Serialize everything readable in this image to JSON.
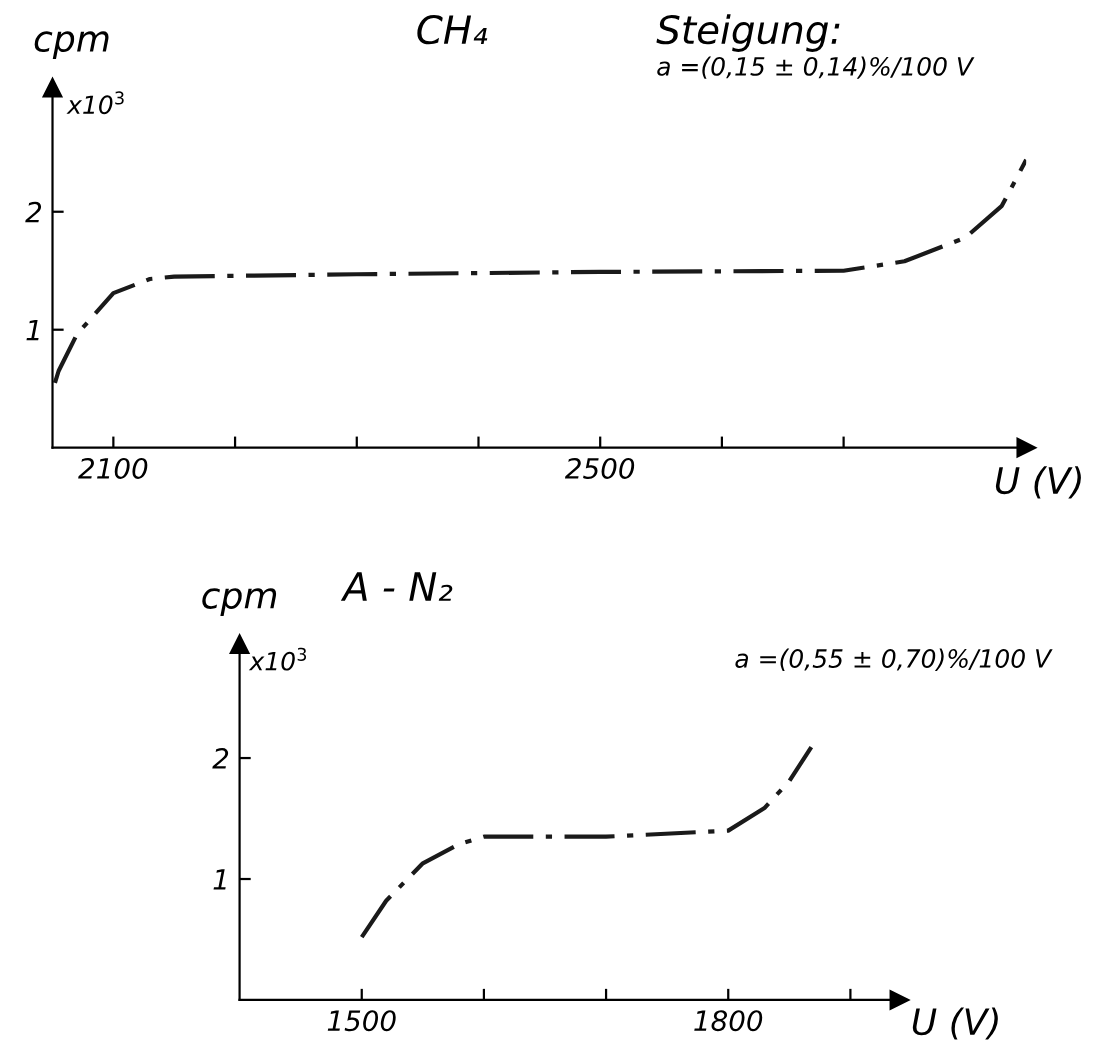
{
  "chart_data": [
    {
      "type": "line",
      "title": "CH₄",
      "subtitle": "Steigung:",
      "ylabel": "cpm",
      "xlabel": "U (V)",
      "annotations": [
        "x10$^{3}$",
        "a =(0,15 ± 0,14)%/100 V"
      ],
      "x": [
        2052,
        2055,
        2070,
        2100,
        2130,
        2150,
        2300,
        2500,
        2700,
        2750,
        2800,
        2830,
        2850
      ],
      "series": [
        {
          "color": "#1a1a1a",
          "values": [
            0.55,
            0.65,
            0.96,
            1.31,
            1.43,
            1.45,
            1.47,
            1.49,
            1.5,
            1.58,
            1.78,
            2.05,
            2.44
          ]
        }
      ],
      "xlim": [
        2050,
        2850
      ],
      "ylim": [
        0,
        3.05
      ],
      "xticks": [
        2100,
        {
          "value": 2200,
          "label": null
        },
        {
          "value": 2300,
          "label": null
        },
        {
          "value": 2400,
          "label": null
        },
        2500,
        {
          "value": 2600,
          "label": null
        },
        {
          "value": 2700,
          "label": null
        }
      ],
      "yticks": [
        1,
        2
      ],
      "line_style": "dashdot"
    },
    {
      "type": "line",
      "title": "A - N₂",
      "ylabel": "cpm",
      "xlabel": "U (V)",
      "annotations": [
        "x10$^{3}$",
        "a =(0,55 ± 0,70)%/100 V"
      ],
      "x": [
        1500,
        1520,
        1550,
        1580,
        1600,
        1700,
        1800,
        1830,
        1850,
        1868
      ],
      "series": [
        {
          "color": "#1a1a1a",
          "values": [
            0.52,
            0.82,
            1.13,
            1.29,
            1.35,
            1.35,
            1.4,
            1.59,
            1.81,
            2.09
          ]
        }
      ],
      "xlim": [
        1400,
        1940
      ],
      "ylim": [
        0,
        2.94
      ],
      "xticks": [
        1500,
        {
          "value": 1600,
          "label": null
        },
        {
          "value": 1700,
          "label": null
        },
        1800,
        {
          "value": 1900,
          "label": null
        }
      ],
      "yticks": [
        1,
        2
      ],
      "line_style": "dashdot"
    }
  ]
}
